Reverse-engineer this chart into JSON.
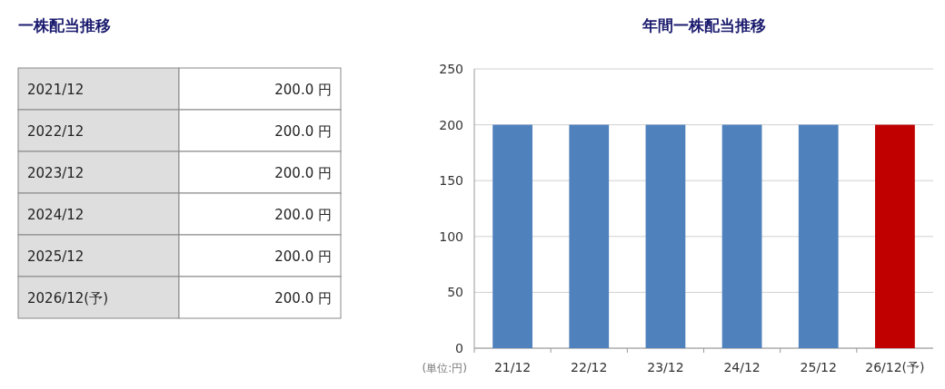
{
  "chart_data": [
    {
      "type": "other",
      "title": "一株配当推移",
      "annotations": [
        "2021/12",
        "200.0 円",
        "2022/12",
        "200.0 円",
        "2023/12",
        "200.0 円",
        "2024/12",
        "200.0 円",
        "2025/12",
        "200.0 円",
        "2026/12(予)",
        "200.0 円"
      ]
    },
    {
      "type": "bar",
      "title": "年間一株配当推移",
      "categories": [
        "21/12",
        "22/12",
        "23/12",
        "24/12",
        "25/12",
        "26/12(予)"
      ],
      "values": [
        200,
        200,
        200,
        200,
        200,
        200
      ],
      "colors": [
        "#4f81bd",
        "#4f81bd",
        "#4f81bd",
        "#4f81bd",
        "#4f81bd",
        "#c00000"
      ],
      "ylim": [
        0,
        250
      ],
      "yticks": [
        0,
        50,
        100,
        150,
        200,
        250
      ],
      "grid": "y",
      "annotations": [
        "(単位:円)"
      ]
    }
  ]
}
